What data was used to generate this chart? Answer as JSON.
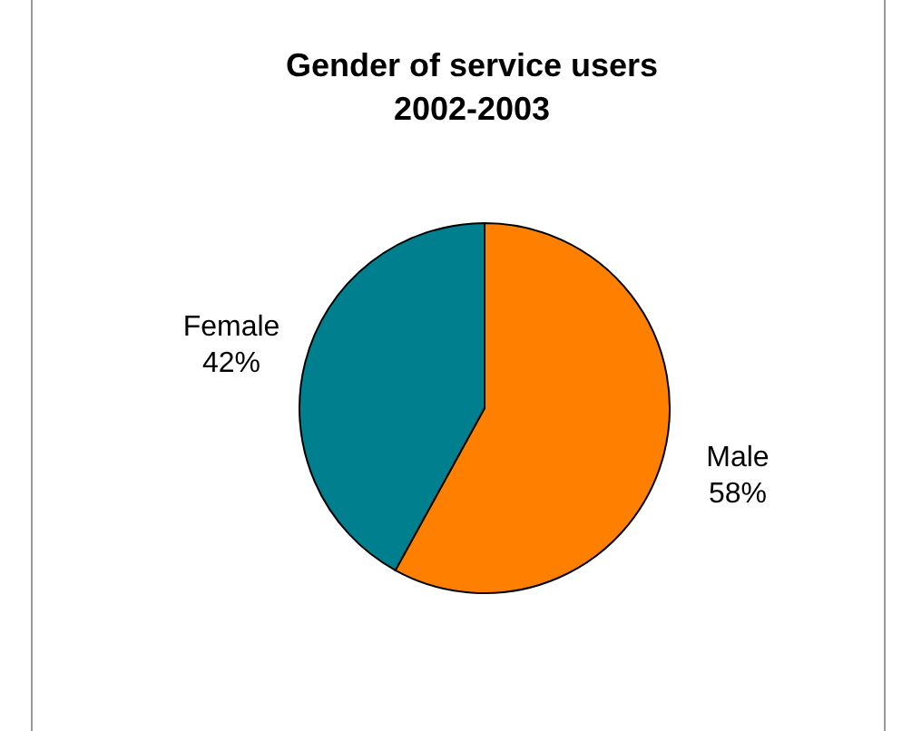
{
  "chart_data": {
    "type": "pie",
    "title": "Gender of service users 2002-2003",
    "categories": [
      "Male",
      "Female"
    ],
    "values": [
      58,
      42
    ],
    "value_labels": [
      "58%",
      "42%"
    ],
    "colors": [
      "#ff8000",
      "#00808f"
    ],
    "legend": false
  }
}
